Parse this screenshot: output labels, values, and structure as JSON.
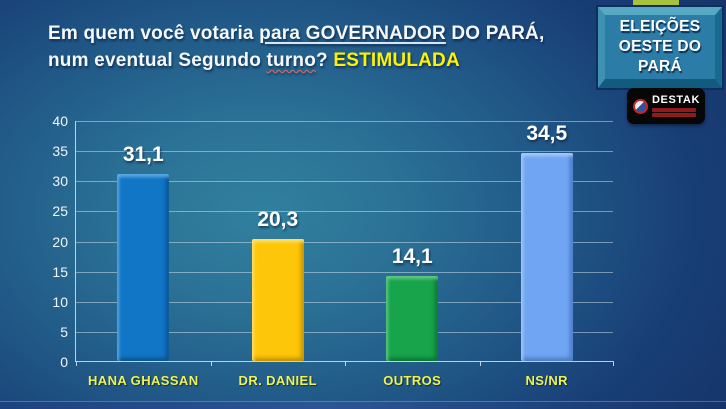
{
  "slide": {
    "title": {
      "line1_prefix": "Em quem você votaria ",
      "line1_underlined": "para GOVERNADOR",
      "line1_suffix": " DO PARÁ,",
      "line2_prefix": "num eventual Segundo ",
      "line2_wavy": "turno",
      "line2_question": "? ",
      "line2_highlight": "ESTIMULADA",
      "highlight_color": "#fdf300"
    },
    "badge": {
      "lines": [
        "ELEIÇÕES",
        "OESTE DO",
        "PARÁ"
      ],
      "fill_color": "#2b7ca7"
    },
    "logo": {
      "text": "DESTAK"
    }
  },
  "chart_data": {
    "type": "bar",
    "categories": [
      "HANA GHASSAN",
      "DR. DANIEL",
      "OUTROS",
      "NS/NR"
    ],
    "values": [
      31.1,
      20.3,
      14.1,
      34.5
    ],
    "value_labels": [
      "31,1",
      "20,3",
      "14,1",
      "34,5"
    ],
    "bar_colors": [
      "#1176c6",
      "#fec608",
      "#17a44a",
      "#6fa5f2"
    ],
    "bar_colors_light": [
      "#5fa9e0",
      "#ffe06e",
      "#62c887",
      "#a9c8f6"
    ],
    "bar_colors_dark": [
      "#0b5391",
      "#c28f00",
      "#0c7434",
      "#4a7ac4"
    ],
    "title": "",
    "xlabel": "",
    "ylabel": "",
    "ylim": [
      0,
      40
    ],
    "yticks": [
      0,
      5,
      10,
      15,
      20,
      25,
      30,
      35,
      40
    ],
    "grid": true,
    "legend": false,
    "category_label_color": "#edf452",
    "value_label_color": "#ffffff"
  }
}
